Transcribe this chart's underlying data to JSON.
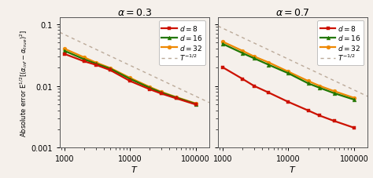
{
  "title_left": "$\\alpha = 0.3$",
  "title_right": "$\\alpha = 0.7$",
  "xlabel": "$T$",
  "ylabel": "Absolute error $\\mathrm{E}^{1/2}[(\\alpha_{inf} - \\alpha_{true})^2]$",
  "T_values": [
    1000,
    2000,
    3000,
    5000,
    10000,
    20000,
    30000,
    50000,
    100000
  ],
  "left": {
    "d8": [
      0.033,
      0.025,
      0.022,
      0.018,
      0.012,
      0.0088,
      0.0075,
      0.0063,
      0.005
    ],
    "d16": [
      0.037,
      0.027,
      0.023,
      0.019,
      0.013,
      0.0093,
      0.0078,
      0.0065,
      0.0051
    ],
    "d32": [
      0.04,
      0.029,
      0.024,
      0.0195,
      0.0135,
      0.0096,
      0.008,
      0.0066,
      0.0052
    ],
    "ref_scale": 1.7
  },
  "right": {
    "d8": [
      0.02,
      0.013,
      0.01,
      0.0078,
      0.0055,
      0.004,
      0.0033,
      0.0027,
      0.0021
    ],
    "d16": [
      0.048,
      0.034,
      0.028,
      0.022,
      0.016,
      0.011,
      0.0093,
      0.0076,
      0.006
    ],
    "d32": [
      0.052,
      0.037,
      0.03,
      0.024,
      0.017,
      0.012,
      0.01,
      0.0082,
      0.0064
    ],
    "ref_scale": 1.65
  },
  "colors": {
    "d8": "#cc1100",
    "d16": "#227700",
    "d32": "#ee8800",
    "ref": "#bbaa99"
  },
  "markers": {
    "d8": "s",
    "d16": "^",
    "d32": "o"
  },
  "ylim": [
    0.001,
    0.13
  ],
  "xlim": [
    850,
    160000
  ],
  "figsize": [
    4.74,
    2.28
  ],
  "dpi": 100,
  "bg_color": "#f5f0eb"
}
